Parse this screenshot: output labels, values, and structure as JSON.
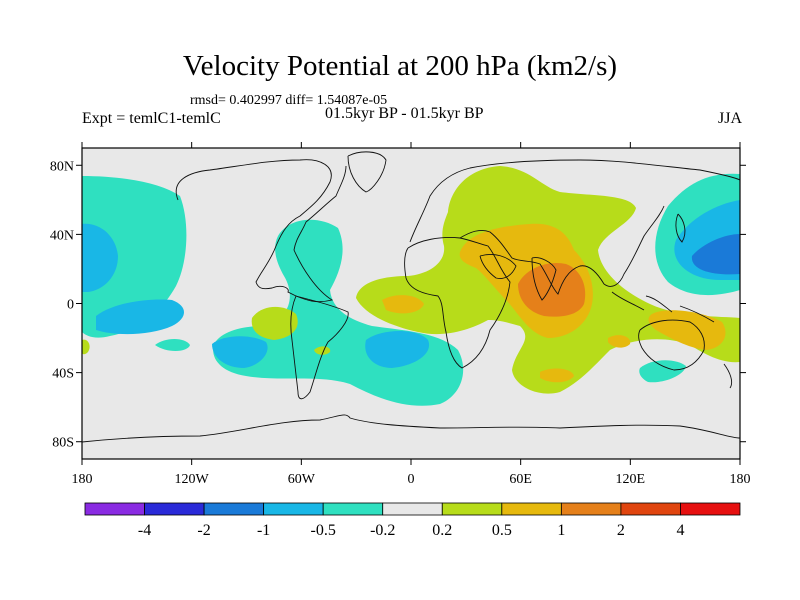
{
  "chart_data": {
    "type": "heatmap",
    "title": "Velocity Potential at 200 hPa (km2/s)",
    "stats_text": "rmsd= 0.402997 diff= 1.54087e-05",
    "left_label": "Expt = temlC1-temlC",
    "center_label": "01.5kyr BP - 01.5kyr BP",
    "right_label": "JJA",
    "x_axis": {
      "range": [
        -180,
        180
      ],
      "tick_values": [
        -180,
        -120,
        -60,
        0,
        60,
        120,
        180
      ],
      "tick_labels": [
        "180",
        "120W",
        "60W",
        "0",
        "60E",
        "120E",
        "180"
      ]
    },
    "y_axis": {
      "range": [
        -90,
        90
      ],
      "tick_values": [
        80,
        40,
        0,
        -40,
        -80
      ],
      "tick_labels": [
        "80N",
        "40N",
        "0",
        "40S",
        "80S"
      ]
    },
    "colorbar": {
      "labels": [
        "-4",
        "-2",
        "-1",
        "-0.5",
        "-0.2",
        "0.2",
        "0.5",
        "1",
        "2",
        "4"
      ],
      "colors": [
        "#8a2be2",
        "#2a2ad8",
        "#1a7ad8",
        "#19b7e6",
        "#2fe0c0",
        "#e8e8e8",
        "#b7dc1a",
        "#e6b90e",
        "#e5801a",
        "#e0450f",
        "#e61010"
      ]
    },
    "level_colors": {
      "n05": "#19b7e6",
      "n02": "#2fe0c0",
      "p02": "#b7dc1a",
      "p05": "#e6b90e",
      "p1": "#e5801a",
      "n1": "#1a7ad8",
      "neutral": "#e8e8e8"
    }
  }
}
